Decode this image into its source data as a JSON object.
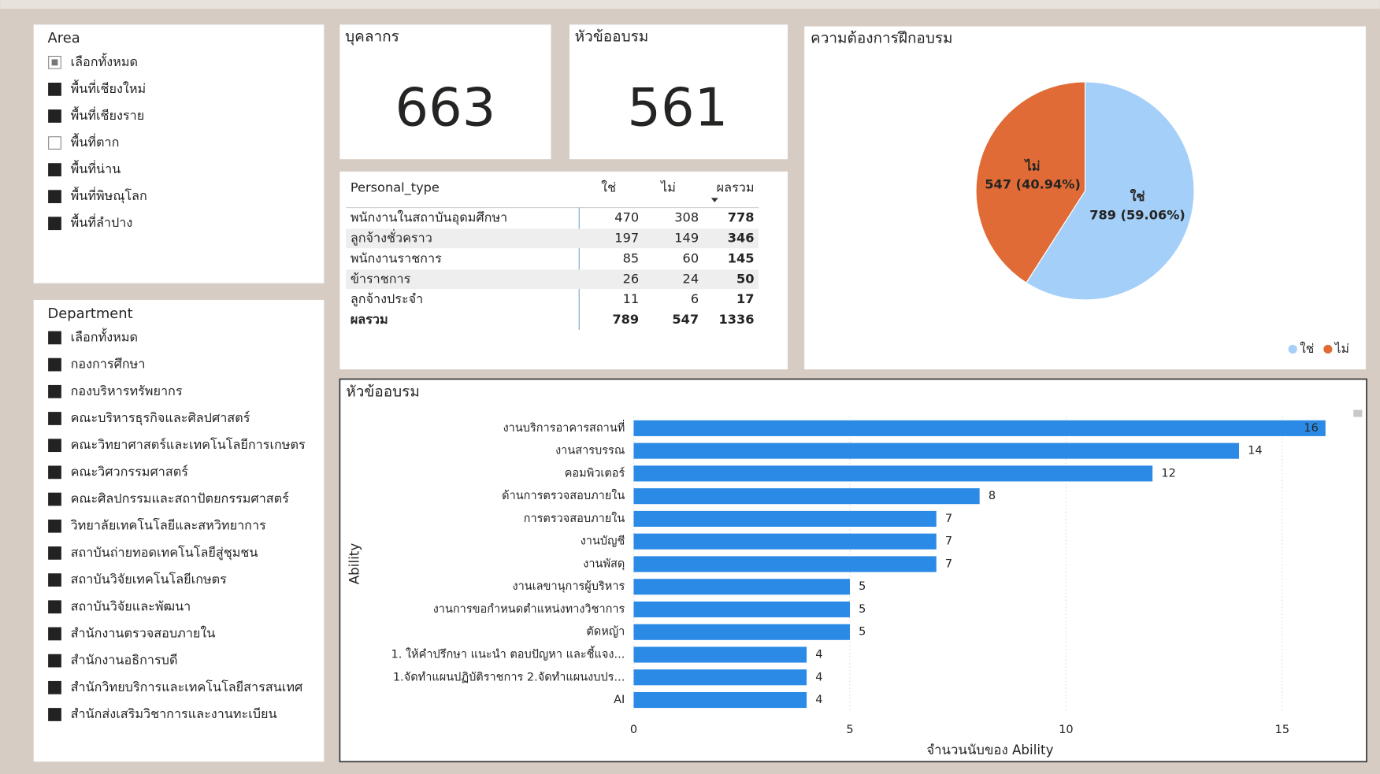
{
  "area": {
    "title": "Area",
    "items": [
      "เลือกทั้งหมด",
      "พื้นที่เชียงใหม่",
      "พื้นที่เชียงราย",
      "พื้นที่ตาก",
      "พื้นที่น่าน",
      "พื้นที่พิษณุโลก",
      "พื้นที่ลำปาง"
    ],
    "selected": [
      "mixed",
      true,
      true,
      false,
      true,
      true,
      true
    ]
  },
  "department": {
    "title": "Department",
    "items": [
      "เลือกทั้งหมด",
      "กองการศึกษา",
      "กองบริหารทรัพยากร",
      "คณะบริหารธุรกิจและศิลปศาสตร์",
      "คณะวิทยาศาสตร์และเทคโนโลยีการเกษตร",
      "คณะวิศวกรรมศาสตร์",
      "คณะศิลปกรรมและสถาปัตยกรรมศาสตร์",
      "วิทยาลัยเทคโนโลยีและสหวิทยาการ",
      "สถาบันถ่ายทอดเทคโนโลยีสู่ชุมชน",
      "สถาบันวิจัยเทคโนโลยีเกษตร",
      "สถาบันวิจัยและพัฒนา",
      "สำนักงานตรวจสอบภายใน",
      "สำนักงานอธิการบดี",
      "สำนักวิทยบริการและเทคโนโลยีสารสนเทศ",
      "สำนักส่งเสริมวิชาการและงานทะเบียน"
    ],
    "selected": [
      true,
      true,
      true,
      true,
      true,
      true,
      true,
      true,
      true,
      true,
      true,
      true,
      true,
      true,
      true
    ]
  },
  "cards": [
    {
      "title": "บุคลากร",
      "value": 663
    },
    {
      "title": "หัวข้ออบรม",
      "value": 561
    }
  ],
  "table": {
    "columns": [
      "Personal_type",
      "ใช่",
      "ไม่",
      "ผลรวม"
    ],
    "rows": [
      [
        "พนักงานในสถาบันอุดมศึกษา",
        470,
        308,
        778
      ],
      [
        "ลูกจ้างชั่วคราว",
        197,
        149,
        346
      ],
      [
        "พนักงานราชการ",
        85,
        60,
        145
      ],
      [
        "ข้าราชการ",
        26,
        24,
        50
      ],
      [
        "ลูกจ้างประจำ",
        11,
        6,
        17
      ]
    ],
    "total": [
      "ผลรวม",
      789,
      547,
      1336
    ]
  },
  "chart_data": [
    {
      "type": "pie",
      "title": "ความต้องการฝึกอบรม",
      "categories": [
        "ใช่",
        "ไม่"
      ],
      "values": [
        789,
        547
      ],
      "value_labels": [
        "789 (59.06%)",
        "547 (40.94%)"
      ],
      "colors": [
        "#a3cff8",
        "#e06b36"
      ],
      "legend": "bottom-right"
    },
    {
      "type": "bar",
      "orientation": "horizontal",
      "title": "หัวข้ออบรม",
      "categories": [
        "งานบริการอาคารสถานที่",
        "งานสารบรรณ",
        "คอมพิวเตอร์",
        "ด้านการตรวจสอบภายใน",
        "การตรวจสอบภายใน",
        "งานบัญชี",
        "งานพัสดุ",
        "งานเลขานุการผู้บริหาร",
        "งานการขอกำหนดตำแหน่งทางวิชาการ",
        "ตัดหญ้า",
        "1. ให้คำปรึกษา แนะนำ ตอบปัญหา และชี้แจง...",
        "1.จัดทำแผนปฏิบัติราชการ 2.จัดทำแผนงบปร...",
        "AI"
      ],
      "values": [
        16,
        14,
        12,
        8,
        7,
        7,
        7,
        5,
        5,
        5,
        4,
        4,
        4
      ],
      "color": "#2b8ae6",
      "xlabel": "จำนวนนับของ Ability",
      "ylabel": "Ability",
      "xlim": [
        0,
        16.3
      ],
      "xticks": [
        0,
        5,
        10,
        15
      ],
      "grid": true
    }
  ]
}
